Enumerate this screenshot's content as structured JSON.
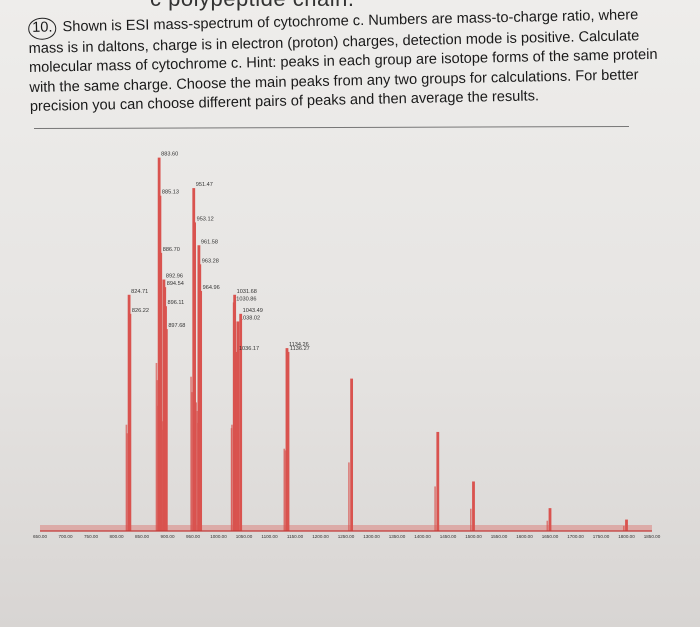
{
  "page": {
    "top_fragment": "c polypeptide chain.",
    "question_number": "10.",
    "question_text": "Shown is ESI mass-spectrum of cytochrome c. Numbers are mass-to-charge ratio, where mass is in daltons, charge is in electron (proton) charges, detection mode is positive. Calculate molecular mass of cytochrome c. Hint: peaks in each group are isotope forms of the same protein with the same charge. Choose the main peaks from any two groups for calculations. For better precision you can choose different pairs of peaks and then average the results."
  },
  "colors": {
    "peak": "#d9534f",
    "baseline": "#c23b38",
    "label": "#333333"
  },
  "chart_data": {
    "type": "bar",
    "title": "",
    "xlabel": "",
    "ylabel": "",
    "xlim": [
      650,
      1850
    ],
    "ylim": [
      0,
      100
    ],
    "grid": false,
    "x_ticks": [
      "650.00",
      "700.00",
      "750.00",
      "800.00",
      "850.00",
      "900.00",
      "950.00",
      "1000.00",
      "1050.00",
      "1100.00",
      "1150.00",
      "1200.00",
      "1250.00",
      "1300.00",
      "1350.00",
      "1400.00",
      "1450.00",
      "1500.00",
      "1550.00",
      "1600.00",
      "1650.00",
      "1700.00",
      "1750.00",
      "1800.00",
      "1850.00"
    ],
    "peaks": [
      {
        "mz": 824.71,
        "intensity": 62,
        "label": "824.71"
      },
      {
        "mz": 826.22,
        "intensity": 57,
        "label": "826.22"
      },
      {
        "mz": 883.6,
        "intensity": 98,
        "label": "883.60"
      },
      {
        "mz": 885.13,
        "intensity": 88,
        "label": "885.13"
      },
      {
        "mz": 886.7,
        "intensity": 73,
        "label": "886.70"
      },
      {
        "mz": 892.96,
        "intensity": 66,
        "label": "892.96"
      },
      {
        "mz": 894.54,
        "intensity": 64,
        "label": "894.54"
      },
      {
        "mz": 896.11,
        "intensity": 59,
        "label": "896.11"
      },
      {
        "mz": 897.68,
        "intensity": 53,
        "label": "897.68"
      },
      {
        "mz": 951.47,
        "intensity": 90,
        "label": "951.47"
      },
      {
        "mz": 953.12,
        "intensity": 81,
        "label": "953.12"
      },
      {
        "mz": 961.58,
        "intensity": 75,
        "label": "961.58"
      },
      {
        "mz": 963.28,
        "intensity": 70,
        "label": "963.28"
      },
      {
        "mz": 964.96,
        "intensity": 63,
        "label": "964.96"
      },
      {
        "mz": 1030.86,
        "intensity": 60,
        "label": "1030.86"
      },
      {
        "mz": 1031.68,
        "intensity": 62,
        "label": "1031.68"
      },
      {
        "mz": 1038.02,
        "intensity": 55,
        "label": "1038.02"
      },
      {
        "mz": 1043.49,
        "intensity": 57,
        "label": "1043.49"
      },
      {
        "mz": 1036.17,
        "intensity": 47,
        "label": "1036.17"
      },
      {
        "mz": 1134.26,
        "intensity": 48,
        "label": "1134.26"
      },
      {
        "mz": 1136.27,
        "intensity": 47,
        "label": "1136.27"
      },
      {
        "mz": 1261.0,
        "intensity": 40,
        "label": ""
      },
      {
        "mz": 1430.0,
        "intensity": 26,
        "label": ""
      },
      {
        "mz": 1500.0,
        "intensity": 13,
        "label": ""
      },
      {
        "mz": 1650.0,
        "intensity": 6,
        "label": ""
      },
      {
        "mz": 1800.0,
        "intensity": 3,
        "label": ""
      }
    ]
  }
}
